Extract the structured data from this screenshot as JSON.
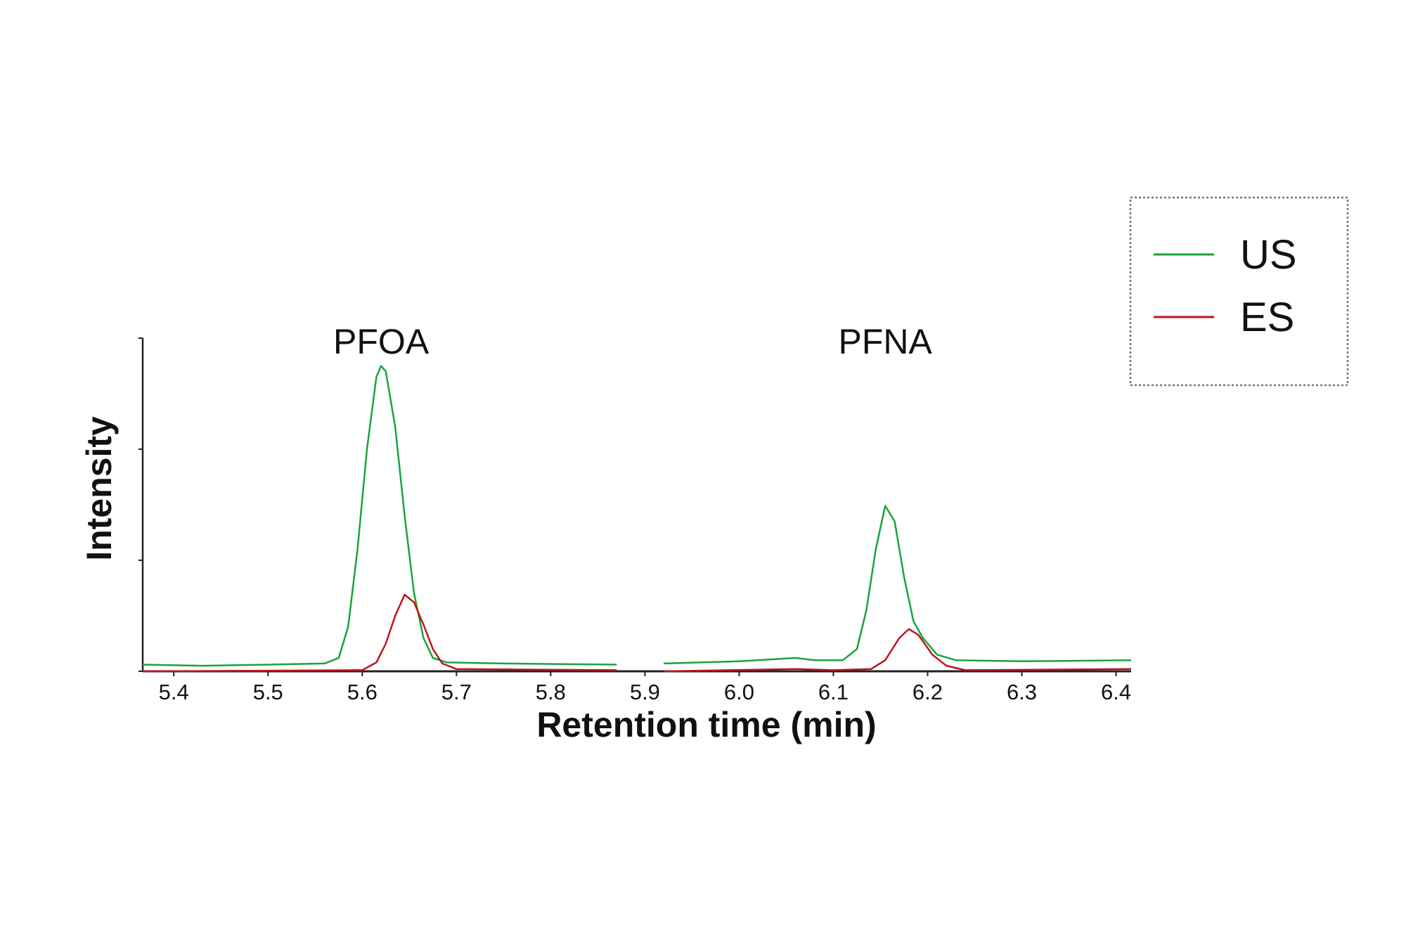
{
  "chart_data": {
    "type": "line",
    "title": "",
    "xlabel": "Retention time (min)",
    "ylabel": "Intensity",
    "xlim": [
      5.367,
      6.416
    ],
    "ylim": [
      0,
      3
    ],
    "x_ticks": [
      "5.4",
      "5.5",
      "5.6",
      "5.7",
      "5.8",
      "5.9",
      "6.0",
      "6.1",
      "6.2",
      "6.3",
      "6.4"
    ],
    "y_ticks_unlabeled": [
      0,
      1,
      2,
      3
    ],
    "grid": false,
    "legend_placement": "top-right",
    "annotations": [
      {
        "text": "PFOA",
        "x": 5.62
      },
      {
        "text": "PFNA",
        "x": 6.155
      }
    ],
    "series": [
      {
        "name": "US",
        "color": "#1aa33a",
        "segments": [
          [
            [
              5.367,
              0.06
            ],
            [
              5.43,
              0.05
            ],
            [
              5.5,
              0.06
            ],
            [
              5.56,
              0.07
            ],
            [
              5.575,
              0.12
            ],
            [
              5.585,
              0.4
            ],
            [
              5.595,
              1.1
            ],
            [
              5.605,
              2.0
            ],
            [
              5.615,
              2.65
            ],
            [
              5.62,
              2.75
            ],
            [
              5.625,
              2.7
            ],
            [
              5.635,
              2.2
            ],
            [
              5.645,
              1.4
            ],
            [
              5.655,
              0.7
            ],
            [
              5.665,
              0.3
            ],
            [
              5.675,
              0.12
            ],
            [
              5.69,
              0.08
            ],
            [
              5.75,
              0.07
            ],
            [
              5.87,
              0.06
            ]
          ],
          [
            [
              5.92,
              0.07
            ],
            [
              6.0,
              0.09
            ],
            [
              6.06,
              0.12
            ],
            [
              6.08,
              0.1
            ],
            [
              6.11,
              0.1
            ],
            [
              6.125,
              0.2
            ],
            [
              6.135,
              0.55
            ],
            [
              6.145,
              1.1
            ],
            [
              6.155,
              1.49
            ],
            [
              6.165,
              1.35
            ],
            [
              6.175,
              0.85
            ],
            [
              6.185,
              0.45
            ],
            [
              6.195,
              0.3
            ],
            [
              6.21,
              0.15
            ],
            [
              6.23,
              0.1
            ],
            [
              6.3,
              0.09
            ],
            [
              6.416,
              0.1
            ]
          ]
        ]
      },
      {
        "name": "ES",
        "color": "#c0141e",
        "segments": [
          [
            [
              5.367,
              0.0
            ],
            [
              5.6,
              0.01
            ],
            [
              5.615,
              0.08
            ],
            [
              5.625,
              0.25
            ],
            [
              5.635,
              0.5
            ],
            [
              5.645,
              0.69
            ],
            [
              5.655,
              0.62
            ],
            [
              5.665,
              0.42
            ],
            [
              5.675,
              0.2
            ],
            [
              5.685,
              0.07
            ],
            [
              5.7,
              0.02
            ],
            [
              5.87,
              0.01
            ]
          ],
          [
            [
              5.92,
              0.0
            ],
            [
              6.06,
              0.02
            ],
            [
              6.1,
              0.01
            ],
            [
              6.14,
              0.02
            ],
            [
              6.155,
              0.1
            ],
            [
              6.17,
              0.3
            ],
            [
              6.18,
              0.38
            ],
            [
              6.19,
              0.33
            ],
            [
              6.205,
              0.15
            ],
            [
              6.22,
              0.05
            ],
            [
              6.24,
              0.01
            ],
            [
              6.416,
              0.02
            ]
          ]
        ]
      }
    ]
  }
}
